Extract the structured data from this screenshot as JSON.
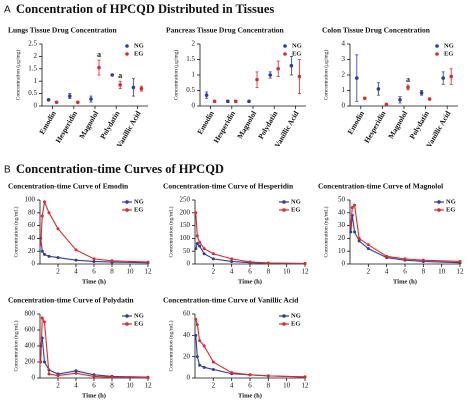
{
  "panels": [
    {
      "label": "A",
      "title": "Concentration of HPCQD Distributed in Tissues"
    },
    {
      "label": "B",
      "title": "Concentration-time Curves of HPCQD"
    }
  ],
  "chart_data": [
    {
      "type": "errorbar",
      "title": "Lungs Tissue Drug Concentration",
      "ylabel": "Concentration (μg/mg)",
      "categories": [
        "Emodin",
        "Hesperidin",
        "Magnolol",
        "Polydatin",
        "Vanillic Acid"
      ],
      "ylim": [
        0,
        2.5
      ],
      "yticks": [
        0,
        0.5,
        1,
        1.5,
        2,
        2.5
      ],
      "legend": "upper right",
      "series": [
        {
          "name": "NG",
          "color": "#2e3d9e",
          "values": [
            0.25,
            0.4,
            0.28,
            1.25,
            0.75
          ],
          "errors": [
            0.03,
            0.1,
            0.12,
            0.03,
            0.35
          ]
        },
        {
          "name": "EG",
          "color": "#e0282e",
          "values": [
            0.15,
            0.15,
            1.55,
            0.85,
            0.7
          ],
          "errors": [
            0.03,
            0.03,
            0.3,
            0.15,
            0.1
          ]
        }
      ],
      "annotations": [
        {
          "text": "a",
          "category": "Magnolol",
          "series": "EG"
        },
        {
          "text": "a",
          "category": "Polydatin",
          "series": "EG"
        }
      ]
    },
    {
      "type": "errorbar",
      "title": "Pancreas Tissue Drug Concentration",
      "ylabel": "Concentration (μg/mg)",
      "categories": [
        "Emodin",
        "Hesperidin",
        "Magnolol",
        "Polydatin",
        "Vanillic Acid"
      ],
      "ylim": [
        0,
        2
      ],
      "yticks": [
        0,
        0.5,
        1,
        1.5,
        2
      ],
      "legend": "upper right",
      "series": [
        {
          "name": "NG",
          "color": "#2e3d9e",
          "values": [
            0.35,
            0.15,
            0.15,
            1.0,
            1.3
          ],
          "errors": [
            0.1,
            0.03,
            0.03,
            0.1,
            0.3
          ]
        },
        {
          "name": "EG",
          "color": "#e0282e",
          "values": [
            0.15,
            0.15,
            0.85,
            1.2,
            0.95
          ],
          "errors": [
            0.03,
            0.03,
            0.25,
            0.25,
            0.55
          ]
        }
      ]
    },
    {
      "type": "errorbar",
      "title": "Colon Tissue Drug Concentration",
      "ylabel": "Concentration (μg/mg)",
      "categories": [
        "Emodin",
        "Hesperidin",
        "Magnolol",
        "Polydatin",
        "Vanillic Acid"
      ],
      "ylim": [
        0,
        4
      ],
      "yticks": [
        0,
        1,
        2,
        3,
        4
      ],
      "legend": "upper right",
      "series": [
        {
          "name": "NG",
          "color": "#2e3d9e",
          "values": [
            1.8,
            1.1,
            0.4,
            0.85,
            1.8
          ],
          "errors": [
            1.5,
            0.4,
            0.2,
            0.15,
            0.4
          ]
        },
        {
          "name": "EG",
          "color": "#e0282e",
          "values": [
            0.5,
            0.1,
            1.2,
            0.45,
            1.9
          ],
          "errors": [
            0.05,
            0.05,
            0.15,
            0.05,
            0.5
          ]
        }
      ],
      "annotations": [
        {
          "text": "a",
          "category": "Magnolol",
          "series": "EG"
        }
      ]
    },
    {
      "type": "line",
      "title": "Concentration-time Curve of Emodin",
      "xlabel": "Time (h)",
      "ylabel": "Concentration (ng/mL)",
      "x": [
        0.083,
        0.25,
        0.5,
        1,
        2,
        4,
        6,
        8,
        12
      ],
      "xlim": [
        0,
        12
      ],
      "xticks": [
        2,
        4,
        6,
        8,
        10,
        12
      ],
      "ylim": [
        0,
        100
      ],
      "yticks": [
        0,
        20,
        40,
        60,
        80,
        100
      ],
      "legend": "upper right",
      "series": [
        {
          "name": "NG",
          "color": "#2e3d9e",
          "values": [
            40,
            20,
            15,
            12,
            10,
            6,
            4,
            3,
            2
          ]
        },
        {
          "name": "EG",
          "color": "#e0282e",
          "values": [
            30,
            75,
            97,
            80,
            55,
            22,
            8,
            5,
            3
          ]
        }
      ]
    },
    {
      "type": "line",
      "title": "Concentration-time Curve of Hesperidin",
      "xlabel": "Time (h)",
      "ylabel": "Concentration (ng/mL)",
      "x": [
        0.083,
        0.25,
        0.5,
        1,
        2,
        4,
        6,
        8,
        12
      ],
      "xlim": [
        0,
        12
      ],
      "xticks": [
        2,
        4,
        6,
        8,
        10,
        12
      ],
      "ylim": [
        0,
        250
      ],
      "yticks": [
        0,
        50,
        100,
        150,
        200,
        250
      ],
      "legend": "upper right",
      "series": [
        {
          "name": "NG",
          "color": "#2e3d9e",
          "values": [
            60,
            80,
            70,
            40,
            20,
            10,
            5,
            3,
            2
          ]
        },
        {
          "name": "EG",
          "color": "#e0282e",
          "values": [
            200,
            110,
            85,
            60,
            40,
            20,
            8,
            4,
            2
          ]
        }
      ]
    },
    {
      "type": "line",
      "title": "Concentration-time Curve of Magnolol",
      "xlabel": "Time (h)",
      "ylabel": "Concentration (ng/mL)",
      "x": [
        0.083,
        0.25,
        0.5,
        1,
        2,
        4,
        6,
        8,
        12
      ],
      "xlim": [
        0,
        12
      ],
      "xticks": [
        2,
        4,
        6,
        8,
        10,
        12
      ],
      "ylim": [
        0,
        50
      ],
      "yticks": [
        0,
        10,
        20,
        30,
        40,
        50
      ],
      "legend": "upper right",
      "series": [
        {
          "name": "NG",
          "color": "#2e3d9e",
          "values": [
            25,
            38,
            25,
            18,
            12,
            5,
            3,
            2,
            1
          ]
        },
        {
          "name": "EG",
          "color": "#e0282e",
          "values": [
            30,
            44,
            46,
            20,
            15,
            6,
            4,
            3,
            2
          ]
        }
      ]
    },
    {
      "type": "line",
      "title": "Concentration-time Curve of Polydatin",
      "xlabel": "Time (h)",
      "ylabel": "Concentration (ng/mL)",
      "x": [
        0.083,
        0.25,
        0.5,
        1,
        2,
        4,
        6,
        8,
        12
      ],
      "xlim": [
        0,
        12
      ],
      "xticks": [
        2,
        4,
        6,
        8,
        10,
        12
      ],
      "ylim": [
        0,
        800
      ],
      "yticks": [
        0,
        200,
        400,
        600,
        800
      ],
      "legend": "upper right",
      "series": [
        {
          "name": "NG",
          "color": "#2e3d9e",
          "values": [
            400,
            500,
            200,
            100,
            50,
            90,
            40,
            20,
            10
          ]
        },
        {
          "name": "EG",
          "color": "#e0282e",
          "values": [
            200,
            750,
            700,
            50,
            30,
            60,
            20,
            10,
            5
          ]
        }
      ]
    },
    {
      "type": "line",
      "title": "Concentration-time Curve of Vanillic Acid",
      "xlabel": "Time (h)",
      "ylabel": "Concentration (ng/mL)",
      "x": [
        0.083,
        0.25,
        0.5,
        1,
        2,
        4,
        6,
        8,
        12
      ],
      "xlim": [
        0,
        12
      ],
      "xticks": [
        2,
        4,
        6,
        8,
        10,
        12
      ],
      "ylim": [
        0,
        60
      ],
      "yticks": [
        0,
        20,
        40,
        60
      ],
      "legend": "upper right",
      "series": [
        {
          "name": "NG",
          "color": "#2e3d9e",
          "values": [
            40,
            20,
            12,
            10,
            8,
            4,
            3,
            2,
            1
          ]
        },
        {
          "name": "EG",
          "color": "#e0282e",
          "values": [
            55,
            50,
            35,
            30,
            15,
            5,
            3,
            2,
            1
          ]
        }
      ]
    }
  ]
}
